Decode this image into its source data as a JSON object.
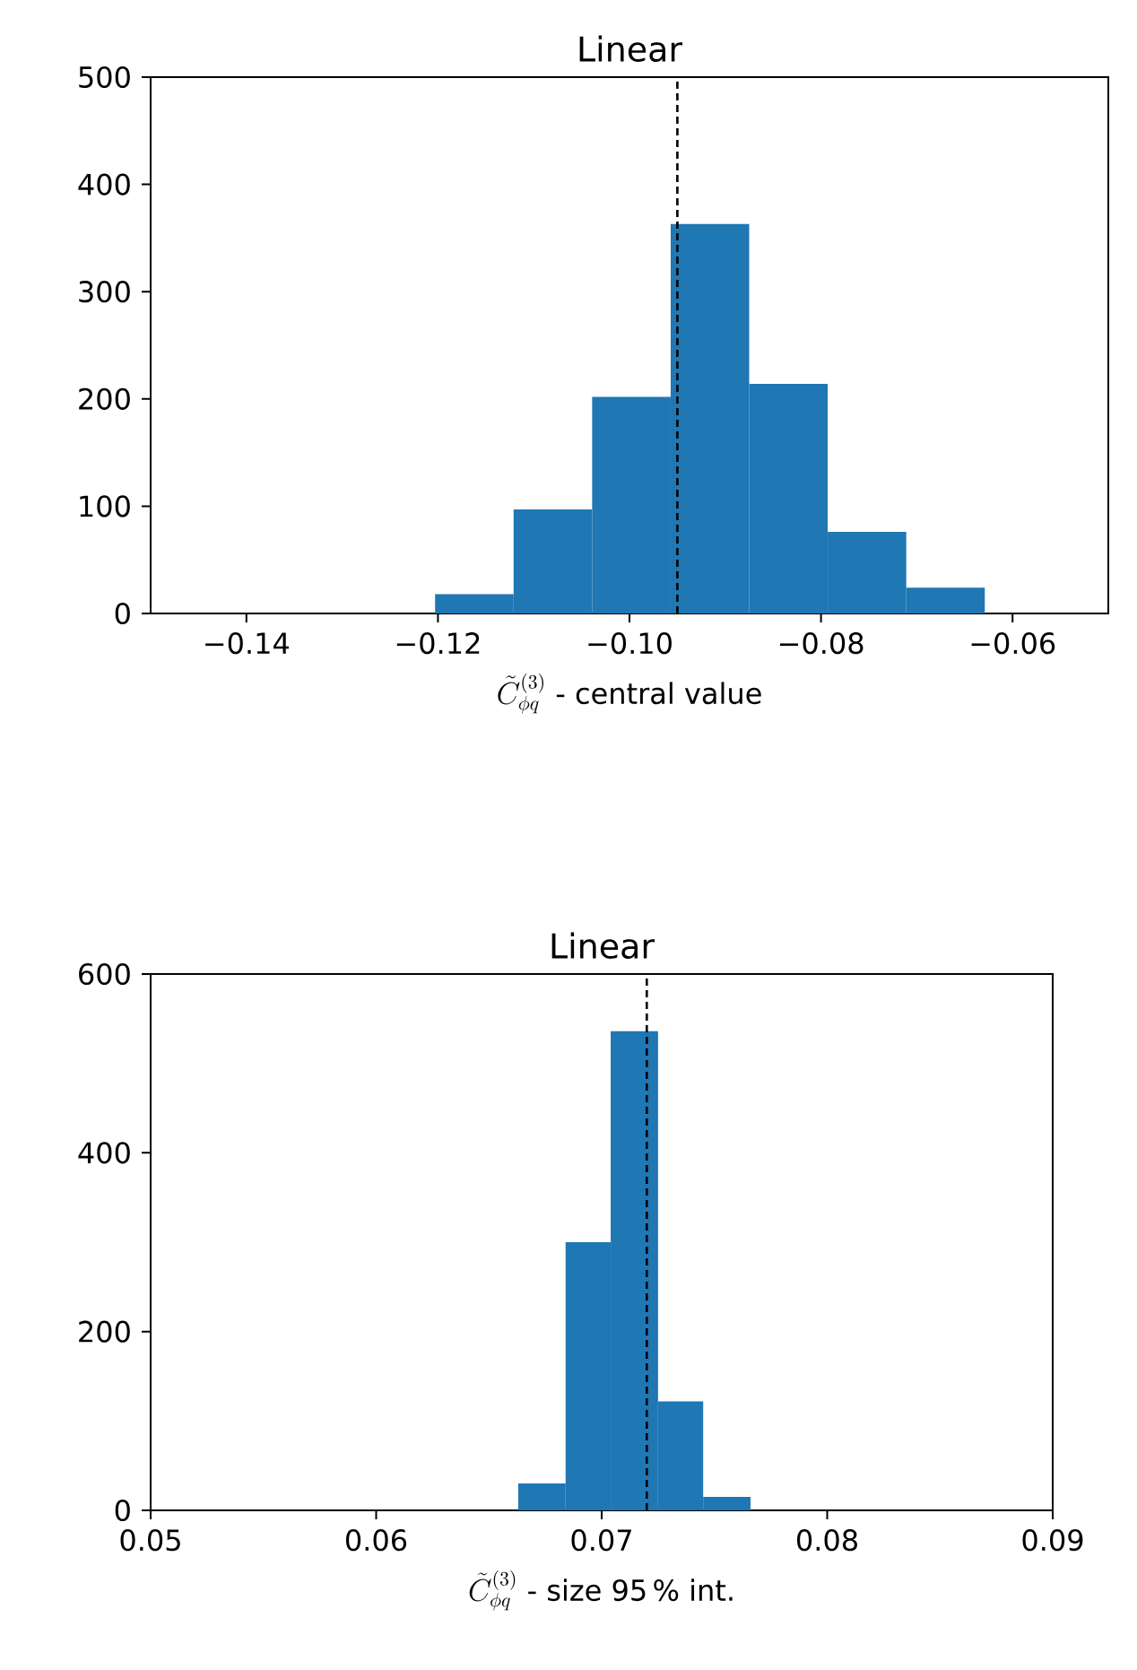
{
  "chart_data": [
    {
      "type": "histogram",
      "title": "Linear",
      "xlabel": "\\tilde{C}^{(3)}_{\\phi q}\\mbox{ - central value}",
      "color": "#1f77b4",
      "bins": [
        -0.1203,
        -0.1121,
        -0.1039,
        -0.0957,
        -0.0875,
        -0.0793,
        -0.0711,
        -0.0629
      ],
      "values": [
        18,
        97,
        202,
        363,
        214,
        76,
        24
      ],
      "xlim": [
        -0.15,
        -0.05
      ],
      "xticks": [
        {
          "value": -0.14,
          "label": "−0.14"
        },
        {
          "value": -0.12,
          "label": "−0.12"
        },
        {
          "value": -0.1,
          "label": "−0.10"
        },
        {
          "value": -0.08,
          "label": "−0.08"
        },
        {
          "value": -0.06,
          "label": "−0.06"
        }
      ],
      "ylim": [
        0,
        500
      ],
      "yticks": [
        0,
        100,
        200,
        300,
        400,
        500
      ],
      "ref_lines": [
        {
          "axis": "x",
          "value": -0.095,
          "color": "#000000",
          "line_style": "dashed"
        }
      ]
    },
    {
      "type": "histogram",
      "title": "Linear",
      "xlabel": "\\tilde{C}^{(3)}_{\\phi q}\\mbox{ - size 95\\,\\% int.}",
      "color": "#1f77b4",
      "bins": [
        0.0663,
        0.0684,
        0.0704,
        0.0725,
        0.0745,
        0.0766
      ],
      "values": [
        30,
        300,
        536,
        122,
        15
      ],
      "xlim": [
        0.05,
        0.09
      ],
      "xticks": [
        0.05,
        0.06,
        0.07,
        0.08,
        0.09
      ],
      "ylim": [
        0,
        600
      ],
      "yticks": [
        0,
        200,
        400,
        600
      ],
      "ref_lines": [
        {
          "axis": "x",
          "value": 0.072,
          "color": "#000000",
          "line_style": "dashed"
        }
      ]
    }
  ]
}
